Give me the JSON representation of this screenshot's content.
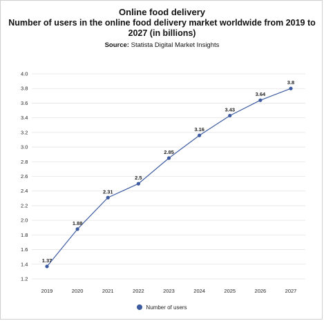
{
  "header": {
    "title": "Online food delivery",
    "subtitle": "Number of users in the online food delivery market worldwide from 2019 to 2027 (in billions)",
    "source_label": "Source:",
    "source_value": "Statista Digital Market Insights"
  },
  "chart_data": {
    "type": "line",
    "x": [
      "2019",
      "2020",
      "2021",
      "2022",
      "2023",
      "2024",
      "2025",
      "2026",
      "2027"
    ],
    "series": [
      {
        "name": "Number of users",
        "values": [
          1.37,
          1.88,
          2.31,
          2.5,
          2.85,
          3.16,
          3.43,
          3.64,
          3.8
        ]
      }
    ],
    "data_labels": [
      "1.37",
      "1.88",
      "2.31",
      "2.5",
      "2.85",
      "3.16",
      "3.43",
      "3.64",
      "3.8"
    ],
    "y_ticks": [
      "1.2",
      "1.4",
      "1.6",
      "1.8",
      "2.0",
      "2.2",
      "2.4",
      "2.6",
      "2.8",
      "3.0",
      "3.2",
      "3.4",
      "3.6",
      "3.8",
      "4.0"
    ],
    "ylim": [
      1.2,
      4.0
    ],
    "grid": true,
    "legend_position": "bottom-center",
    "line_color": "#3b5aa0",
    "grid_color": "#e3e3e3"
  }
}
